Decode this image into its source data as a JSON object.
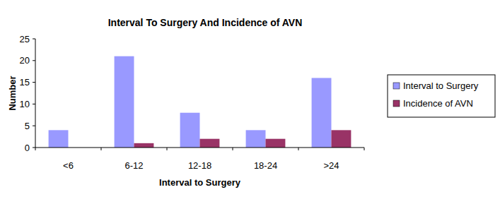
{
  "chart_data": {
    "type": "bar",
    "title": "Interval To Surgery And Incidence of AVN",
    "x_label": "Interval to Surgery",
    "y_label": "Number",
    "categories": [
      "<6",
      "6-12",
      "12-18",
      "18-24",
      ">24"
    ],
    "series": [
      {
        "name": "Interval to Surgery",
        "color": "#9999ff",
        "values": [
          4,
          21,
          8,
          4,
          16
        ]
      },
      {
        "name": "Incidence of AVN",
        "color": "#993366",
        "values": [
          0,
          1,
          2,
          2,
          4
        ]
      }
    ],
    "ylim": [
      0,
      25
    ],
    "yticks": [
      0,
      5,
      10,
      15,
      20,
      25
    ],
    "grid": false,
    "legend": "right"
  }
}
